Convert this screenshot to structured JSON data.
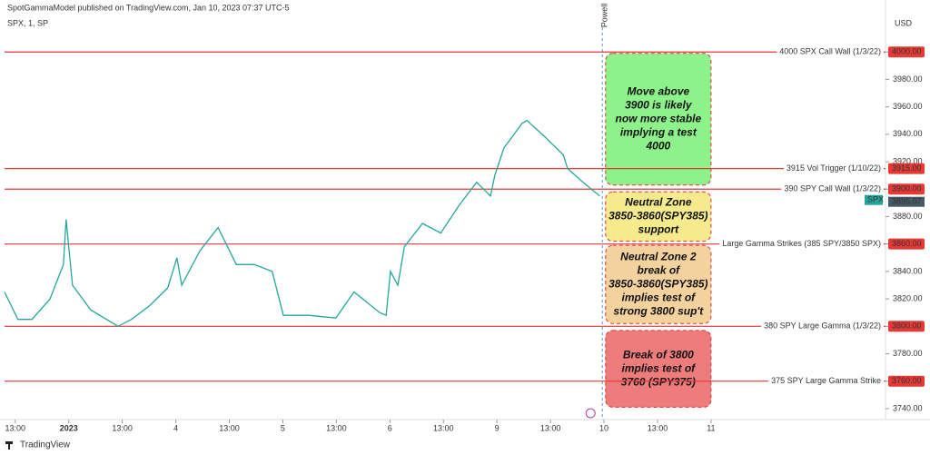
{
  "chart_data": {
    "type": "line",
    "header": "SpotGammaModel published on TradingView.com, Jan 10, 2023 07:37 UTC-5",
    "symbol": "SPX, 1, SP",
    "currency": "USD",
    "footer": "TradingView",
    "xlim": [
      -0.2,
      16.26
    ],
    "xticks": [
      {
        "value": 0,
        "label": "13:00"
      },
      {
        "value": 1,
        "label": "2023"
      },
      {
        "value": 2,
        "label": "13:00"
      },
      {
        "value": 3,
        "label": "4"
      },
      {
        "value": 4,
        "label": "13:00"
      },
      {
        "value": 5,
        "label": "5"
      },
      {
        "value": 6,
        "label": "13:00"
      },
      {
        "value": 7,
        "label": "6"
      },
      {
        "value": 8,
        "label": "13:00"
      },
      {
        "value": 9,
        "label": "9"
      },
      {
        "value": 10,
        "label": "13:00"
      },
      {
        "value": 11,
        "label": "10"
      },
      {
        "value": 12,
        "label": "13:00"
      },
      {
        "value": 13,
        "label": "11"
      }
    ],
    "ylim": [
      3732,
      4022
    ],
    "yticks": [
      {
        "value": 3740,
        "label": "3740.00"
      },
      {
        "value": 3760,
        "label": "3760.00"
      },
      {
        "value": 3780,
        "label": "3780.00"
      },
      {
        "value": 3800,
        "label": "3800.00"
      },
      {
        "value": 3820,
        "label": "3820.00"
      },
      {
        "value": 3840,
        "label": "3840.00"
      },
      {
        "value": 3860,
        "label": "3860.00"
      },
      {
        "value": 3880,
        "label": "3880.00"
      },
      {
        "value": 3900,
        "label": "3900.00"
      },
      {
        "value": 3920,
        "label": "3920.00"
      },
      {
        "value": 3940,
        "label": "3940.00"
      },
      {
        "value": 3960,
        "label": "3960.00"
      },
      {
        "value": 3980,
        "label": "3980.00"
      },
      {
        "value": 4000,
        "label": "4000.00"
      }
    ],
    "series": [
      {
        "name": "SPX",
        "color": "#26a69a",
        "x": [
          -0.2,
          0.05,
          0.31,
          0.65,
          0.9,
          0.95,
          1.07,
          1.41,
          1.92,
          2.17,
          2.51,
          2.85,
          3.02,
          3.11,
          3.45,
          3.79,
          4.13,
          4.47,
          4.8,
          5.01,
          5.48,
          5.99,
          6.33,
          6.81,
          6.93,
          7.01,
          7.15,
          7.27,
          7.61,
          7.95,
          8.29,
          8.62,
          8.88,
          8.96,
          9.13,
          9.47,
          9.56,
          9.9,
          10.24,
          10.32,
          10.61,
          10.92
        ],
        "values": [
          3825,
          3805,
          3805,
          3820,
          3845,
          3878,
          3830,
          3812,
          3800,
          3805,
          3815,
          3828,
          3850,
          3830,
          3855,
          3872,
          3845,
          3845,
          3840,
          3808,
          3808,
          3806,
          3825,
          3810,
          3808,
          3840,
          3830,
          3858,
          3875,
          3868,
          3888,
          3905,
          3895,
          3910,
          3930,
          3948,
          3950,
          3938,
          3925,
          3915,
          3905,
          3895
        ]
      }
    ],
    "last_price": {
      "value": 3895.07,
      "label": "3895.07",
      "name": "SPX"
    },
    "levels": [
      {
        "value": 4000,
        "label": "4000.00",
        "text": "4000 SPX Call Wall (1/3/22)"
      },
      {
        "value": 3915,
        "label": "3915.00",
        "text": "3915 Vol Trigger (1/10/22)"
      },
      {
        "value": 3900,
        "label": "3900.00",
        "text": "390 SPY Call Wall (1/3/22)"
      },
      {
        "value": 3860,
        "label": "3860.00",
        "text": "Large Gamma Strikes (385 SPY/3850 SPX)"
      },
      {
        "value": 3800,
        "label": "3800.00",
        "text": "380 SPY Large Gamma (1/3/22)"
      },
      {
        "value": 3760,
        "label": "3760.00",
        "text": "375 SPY Large Gamma Strike"
      }
    ],
    "event": {
      "x": 10.97,
      "text": "Powell"
    },
    "zones": [
      {
        "top": 3999,
        "bottom": 3903,
        "color": "#8ef28a",
        "lines": [
          "Move above",
          "3900 is likely",
          "now more stable",
          "implying a test",
          "4000"
        ]
      },
      {
        "top": 3898,
        "bottom": 3862,
        "color": "#f5ea8c",
        "lines": [
          "Neutral Zone",
          "3850-3860(SPY385)",
          "support"
        ]
      },
      {
        "top": 3859,
        "bottom": 3802,
        "color": "#f3d29e",
        "lines": [
          "Neutral Zone 2",
          "break of",
          "3850-3860(SPY385)",
          "implies test of",
          "strong 3800 sup't"
        ]
      },
      {
        "top": 3797,
        "bottom": 3741,
        "color": "#ee7c7c",
        "lines": [
          "Break of 3800",
          "implies test of",
          "3760 (SPY375)"
        ]
      }
    ]
  }
}
